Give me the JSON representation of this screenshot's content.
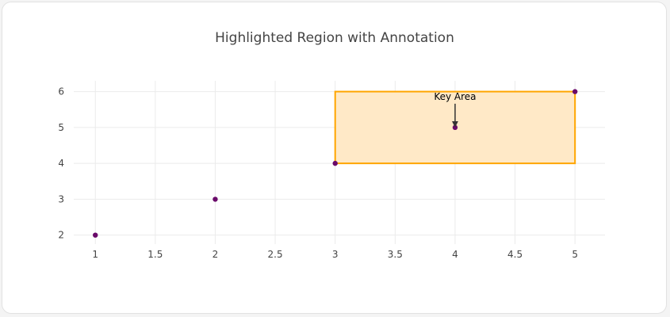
{
  "chart_data": {
    "type": "scatter",
    "title": "Highlighted Region with Annotation",
    "xlabel": "",
    "ylabel": "",
    "x": [
      1,
      2,
      3,
      4,
      5
    ],
    "y": [
      2,
      3,
      4,
      5,
      6
    ],
    "xlim": [
      0.82,
      5.25
    ],
    "ylim": [
      1.75,
      6.3
    ],
    "x_ticks": [
      1,
      1.5,
      2,
      2.5,
      3,
      3.5,
      4,
      4.5,
      5
    ],
    "x_tick_labels": [
      "1",
      "1.5",
      "2",
      "2.5",
      "3",
      "3.5",
      "4",
      "4.5",
      "5"
    ],
    "y_ticks": [
      2,
      3,
      4,
      5,
      6
    ],
    "y_tick_labels": [
      "2",
      "3",
      "4",
      "5",
      "6"
    ],
    "grid": true,
    "legend": "none",
    "marker_color": "#6a0a6a",
    "highlight_region": {
      "x0": 3,
      "x1": 5,
      "y0": 4,
      "y1": 6,
      "fill_color": "#ffe9c7",
      "line_color": "#ffa500"
    },
    "annotation": {
      "text": "Key Area",
      "x": 4,
      "y": 5,
      "arrow": true
    }
  }
}
